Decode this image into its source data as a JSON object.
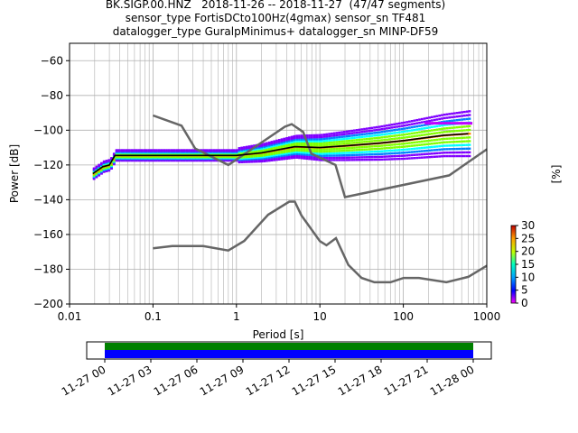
{
  "title_lines": [
    "BK.SIGP.00.HNZ   2018-11-26 -- 2018-11-27  (47/47 segments)",
    "sensor_type FortisDCto100Hz(4gmax) sensor_sn TF481",
    "datalogger_type GuralpMinimus+ datalogger_sn MINP-DF59"
  ],
  "chart_data": [
    {
      "type": "heatmap",
      "xlabel": "Period [s]",
      "ylabel": "Power [dB]",
      "x_scale": "log",
      "xlim": [
        0.01,
        1000
      ],
      "ylim": [
        -200,
        -50
      ],
      "xticks": [
        {
          "v": 0.01,
          "label": "0.01"
        },
        {
          "v": 0.1,
          "label": "0.1"
        },
        {
          "v": 1,
          "label": "1"
        },
        {
          "v": 10,
          "label": "10"
        },
        {
          "v": 100,
          "label": "100"
        },
        {
          "v": 1000,
          "label": "1000"
        }
      ],
      "yticks": [
        -60,
        -80,
        -100,
        -120,
        -140,
        -160,
        -180,
        -200
      ],
      "grid": true,
      "noise_models": {
        "color": "#666666",
        "high": [
          [
            0.1,
            -91.5
          ],
          [
            0.22,
            -97.4
          ],
          [
            0.32,
            -110.5
          ],
          [
            0.8,
            -120
          ],
          [
            3.8,
            -98
          ],
          [
            4.6,
            -96.5
          ],
          [
            6.3,
            -101
          ],
          [
            7.9,
            -113.5
          ],
          [
            15.4,
            -120
          ],
          [
            20,
            -138.5
          ],
          [
            354.8,
            -126
          ],
          [
            1000,
            -111
          ]
        ],
        "low": [
          [
            0.1,
            -168
          ],
          [
            0.17,
            -166.7
          ],
          [
            0.4,
            -166.7
          ],
          [
            0.8,
            -169.2
          ],
          [
            1.24,
            -163.7
          ],
          [
            2.4,
            -148.6
          ],
          [
            4.3,
            -141.1
          ],
          [
            5,
            -141.1
          ],
          [
            6,
            -149
          ],
          [
            10,
            -163.8
          ],
          [
            12,
            -166.2
          ],
          [
            15.6,
            -162.1
          ],
          [
            21.9,
            -177.5
          ],
          [
            31.6,
            -185
          ],
          [
            45,
            -187.5
          ],
          [
            70,
            -187.5
          ],
          [
            101,
            -185
          ],
          [
            154,
            -185
          ],
          [
            328,
            -187.5
          ],
          [
            600,
            -184.4
          ],
          [
            1000,
            -178
          ]
        ]
      },
      "mean_curve": [
        [
          0.019,
          -125
        ],
        [
          0.025,
          -121
        ],
        [
          0.03,
          -120
        ],
        [
          0.035,
          -114.5
        ],
        [
          0.1,
          -114.5
        ],
        [
          0.5,
          -114.5
        ],
        [
          1,
          -114.5
        ],
        [
          2,
          -113
        ],
        [
          5,
          -109.5
        ],
        [
          10,
          -110
        ],
        [
          20,
          -109
        ],
        [
          50,
          -107.5
        ],
        [
          100,
          -106
        ],
        [
          300,
          -103
        ],
        [
          600,
          -102
        ]
      ],
      "colorbar": {
        "label": "[%]",
        "ticks": [
          0,
          5,
          10,
          15,
          20,
          25,
          30
        ],
        "range": [
          0,
          30
        ]
      }
    },
    {
      "type": "bar",
      "description_free": true,
      "xticks": [
        "11-27 00",
        "11-27 03",
        "11-27 06",
        "11-27 09",
        "11-27 12",
        "11-27 15",
        "11-27 18",
        "11-27 21",
        "11-28 00"
      ],
      "coverage_fraction": [
        0.0,
        1.0
      ],
      "colors": {
        "top": "#008000",
        "bottom": "#0000ff"
      }
    }
  ]
}
